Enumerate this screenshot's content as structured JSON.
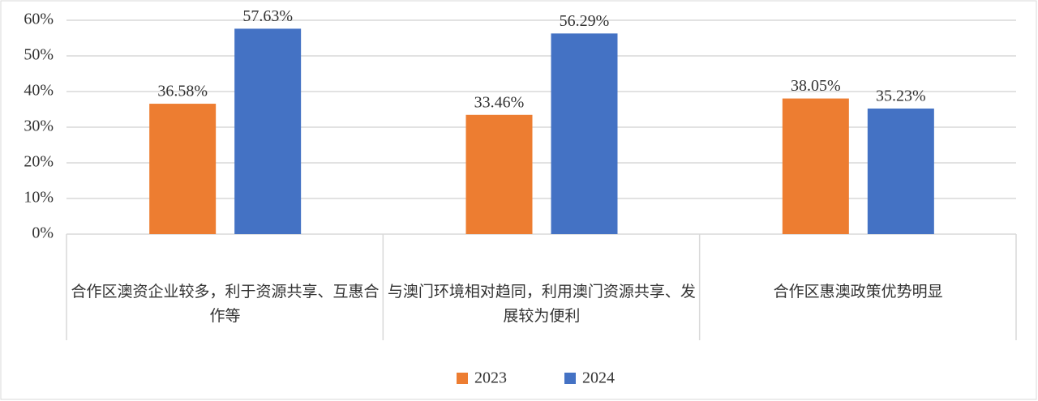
{
  "chart_data": {
    "type": "bar",
    "categories": [
      "合作区澳资企业较多，利于资源共享、互惠合作等",
      "与澳门环境相对趋同，利用澳门资源共享、发展较为便利",
      "合作区惠澳政策优势明显"
    ],
    "series": [
      {
        "name": "2023",
        "color": "#ed7d31",
        "values": [
          36.58,
          33.46,
          38.05
        ],
        "value_labels": [
          "36.58%",
          "33.46%",
          "38.05%"
        ]
      },
      {
        "name": "2024",
        "color": "#4472c4",
        "values": [
          57.63,
          56.29,
          35.23
        ],
        "value_labels": [
          "57.63%",
          "56.29%",
          "35.23%"
        ]
      }
    ],
    "ylim": [
      0,
      60
    ],
    "yticks": [
      {
        "value": 0,
        "label": "0%"
      },
      {
        "value": 10,
        "label": "10%"
      },
      {
        "value": 20,
        "label": "20%"
      },
      {
        "value": 30,
        "label": "30%"
      },
      {
        "value": 40,
        "label": "40%"
      },
      {
        "value": 50,
        "label": "50%"
      },
      {
        "value": 60,
        "label": "60%"
      }
    ],
    "grid": true,
    "legend": "bottom"
  }
}
